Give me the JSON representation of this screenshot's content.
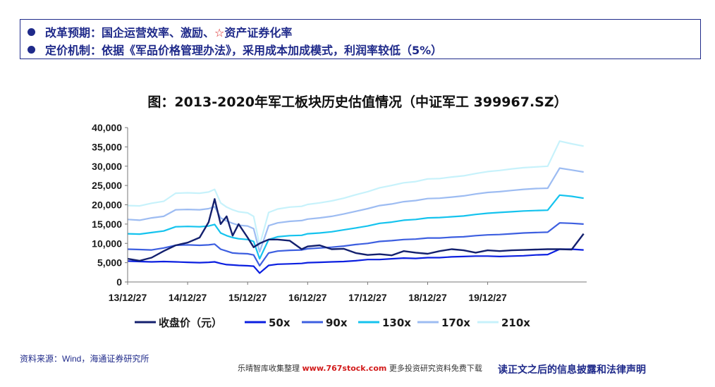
{
  "bullets": [
    {
      "text_a": "改革预期：国企运营效率、激励、",
      "star": "☆",
      "text_b": "资产证券化率"
    },
    {
      "text_a": "定价机制：依据《军品价格管理办法》，采用成本加成模式，利润率较低（5%）",
      "star": "",
      "text_b": ""
    }
  ],
  "chart_title": "图：2013-2020年军工板块历史估值情况（中证军工 399967.SZ）",
  "source": "资料来源：Wind，海通证券研究所",
  "watermark": {
    "prefix": "乐晴智库收集整理",
    "site": "www.767stock.com",
    "suffix": "更多投资研究资料免费下载"
  },
  "footer": "读正文之后的信息披露和法律声明",
  "chart_data": {
    "type": "line",
    "title": "图：2013-2020年军工板块历史估值情况（中证军工 399967.SZ）",
    "xlabel": "",
    "ylabel": "",
    "x_ticks": [
      "13/12/27",
      "14/12/27",
      "15/12/27",
      "16/12/27",
      "17/12/27",
      "18/12/27",
      "19/12/27"
    ],
    "xlim": [
      0,
      7.65
    ],
    "ylim": [
      0,
      40000
    ],
    "y_ticks": [
      "0",
      "5,000",
      "10,000",
      "15,000",
      "20,000",
      "25,000",
      "30,000",
      "35,000",
      "40,000"
    ],
    "x": [
      0,
      0.2,
      0.4,
      0.6,
      0.8,
      1.0,
      1.2,
      1.35,
      1.45,
      1.55,
      1.65,
      1.75,
      1.85,
      2.0,
      2.1,
      2.2,
      2.35,
      2.5,
      2.7,
      2.9,
      3.0,
      3.2,
      3.4,
      3.6,
      3.8,
      4.0,
      4.2,
      4.4,
      4.6,
      4.8,
      5.0,
      5.2,
      5.4,
      5.6,
      5.8,
      6.0,
      6.2,
      6.4,
      6.6,
      6.8,
      7.0,
      7.2,
      7.4,
      7.6
    ],
    "series": [
      {
        "name": "收盘价（元）",
        "color": "#13206e",
        "values": [
          6000,
          5500,
          6300,
          8000,
          9500,
          10200,
          11500,
          15500,
          21500,
          15000,
          17000,
          12000,
          15000,
          11500,
          9000,
          10000,
          11000,
          11000,
          10700,
          8500,
          9200,
          9500,
          8500,
          8600,
          7500,
          7000,
          7200,
          6900,
          8000,
          7600,
          7300,
          8000,
          8500,
          8200,
          7600,
          8200,
          8000,
          8200,
          8300,
          8400,
          8500,
          8500,
          8400,
          12500
        ]
      },
      {
        "name": "50x",
        "color": "#0b1fe0",
        "values": [
          5400,
          5300,
          5200,
          5300,
          5200,
          5100,
          5000,
          5100,
          5200,
          4800,
          4500,
          4400,
          4300,
          4200,
          4100,
          2300,
          4300,
          4600,
          4700,
          4800,
          5000,
          5100,
          5200,
          5300,
          5500,
          5800,
          5800,
          6000,
          6200,
          6100,
          6300,
          6300,
          6500,
          6600,
          6700,
          6700,
          6600,
          6700,
          6800,
          7000,
          7100,
          8500,
          8500,
          8300
        ]
      },
      {
        "name": "90x",
        "color": "#3d5fe0",
        "values": [
          8500,
          8400,
          8300,
          8800,
          9500,
          9600,
          9500,
          9600,
          9800,
          8500,
          8000,
          7500,
          7400,
          7300,
          7000,
          4200,
          7500,
          8000,
          8200,
          8300,
          8600,
          8800,
          9000,
          9300,
          9700,
          10000,
          10500,
          10700,
          11000,
          11100,
          11400,
          11400,
          11600,
          11700,
          12000,
          12200,
          12300,
          12500,
          12700,
          12800,
          12900,
          15300,
          15200,
          15000
        ]
      },
      {
        "name": "130x",
        "color": "#14c3ee",
        "values": [
          12500,
          12400,
          12800,
          13200,
          14300,
          14400,
          14300,
          14500,
          14900,
          12700,
          12000,
          11500,
          11200,
          11000,
          10500,
          6000,
          11000,
          11700,
          12000,
          12100,
          12500,
          12700,
          13000,
          13500,
          14000,
          14500,
          15200,
          15500,
          16000,
          16200,
          16600,
          16700,
          16900,
          17100,
          17500,
          17800,
          18000,
          18200,
          18400,
          18500,
          18600,
          22500,
          22200,
          21700
        ]
      },
      {
        "name": "170x",
        "color": "#9dbcf2",
        "values": [
          16200,
          16000,
          16600,
          17000,
          18700,
          18800,
          18700,
          19000,
          19500,
          16600,
          15800,
          15200,
          14700,
          14500,
          13800,
          7800,
          14600,
          15300,
          15700,
          15900,
          16300,
          16600,
          17000,
          17600,
          18300,
          19000,
          19800,
          20200,
          20800,
          21100,
          21600,
          21700,
          22000,
          22300,
          22800,
          23200,
          23400,
          23700,
          24000,
          24200,
          24300,
          29500,
          29000,
          28500
        ]
      },
      {
        "name": "210x",
        "color": "#c7f2fb",
        "values": [
          19800,
          19700,
          20400,
          20900,
          23000,
          23100,
          23000,
          23300,
          24000,
          20500,
          19400,
          18700,
          18200,
          17900,
          17000,
          9500,
          18000,
          18900,
          19400,
          19600,
          20100,
          20500,
          21000,
          21700,
          22600,
          23400,
          24400,
          25000,
          25700,
          26000,
          26700,
          26800,
          27200,
          27500,
          28100,
          28600,
          28900,
          29300,
          29600,
          29800,
          30000,
          36500,
          35800,
          35200
        ]
      }
    ],
    "legend_position": "bottom",
    "grid": false
  }
}
